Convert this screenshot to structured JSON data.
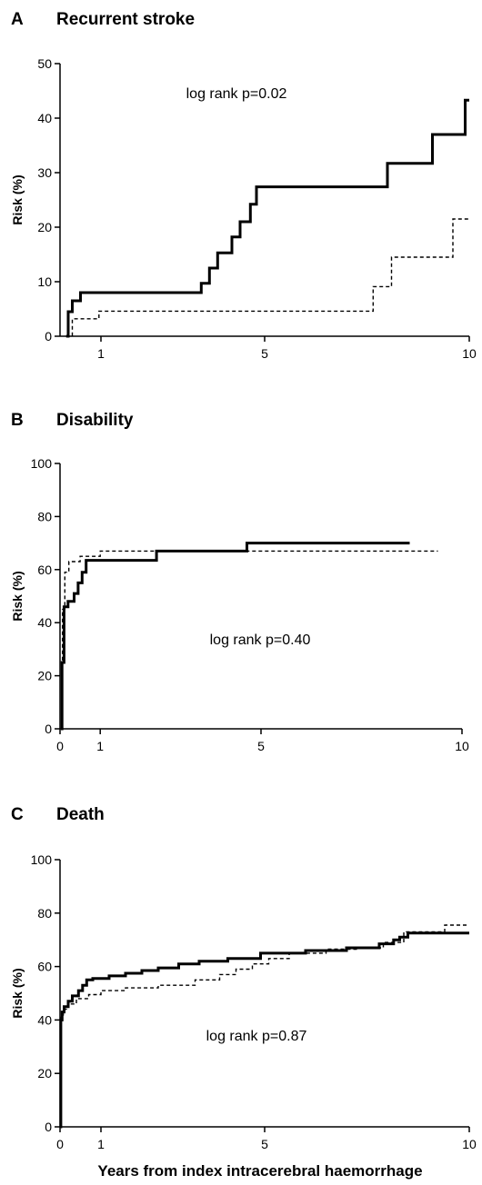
{
  "figure": {
    "xlabel": "Years from index intracerebral haemorrhage"
  },
  "chart_data": [
    {
      "type": "line",
      "panel_letter": "A",
      "title": "Recurrent stroke",
      "xlabel": "",
      "ylabel": "Risk  (%)",
      "annotation": "log rank p=0.02",
      "xlim": [
        0,
        10
      ],
      "ylim": [
        0,
        50
      ],
      "x_ticks": [
        1,
        5,
        10
      ],
      "y_ticks": [
        0,
        10,
        20,
        30,
        40,
        50
      ],
      "step": true,
      "series": [
        {
          "style": "solid",
          "x": [
            0.15,
            0.2,
            0.3,
            0.5,
            3.45,
            3.65,
            3.85,
            4.2,
            4.4,
            4.65,
            4.8,
            8.0,
            9.1,
            9.9,
            10.0
          ],
          "y": [
            0,
            4.5,
            6.5,
            8,
            9.7,
            12.5,
            15.3,
            18.2,
            21,
            24.2,
            27.4,
            31.7,
            37,
            43.3,
            43.3
          ]
        },
        {
          "style": "dashed",
          "x": [
            0.15,
            0.3,
            0.95,
            7.65,
            8.1,
            9.6,
            10.0
          ],
          "y": [
            0,
            3.2,
            4.6,
            9.1,
            14.5,
            21.5,
            21.5
          ]
        }
      ]
    },
    {
      "type": "line",
      "panel_letter": "B",
      "title": "Disability",
      "xlabel": "",
      "ylabel": "Risk  (%)",
      "annotation": "log rank p=0.40",
      "xlim": [
        0,
        10
      ],
      "ylim": [
        0,
        100
      ],
      "x_ticks": [
        0,
        1,
        5,
        10
      ],
      "y_ticks": [
        0,
        20,
        40,
        60,
        80,
        100
      ],
      "step": true,
      "series": [
        {
          "style": "solid",
          "x": [
            0.02,
            0.05,
            0.1,
            0.2,
            0.35,
            0.45,
            0.55,
            0.65,
            0.8,
            2.4,
            4.65,
            8.7
          ],
          "y": [
            0,
            25,
            46,
            48,
            51,
            55,
            59,
            63.5,
            63.5,
            67,
            70,
            70
          ]
        },
        {
          "style": "dashed",
          "x": [
            0.02,
            0.06,
            0.12,
            0.22,
            0.5,
            1.0,
            9.4
          ],
          "y": [
            0,
            45,
            59,
            63,
            65,
            67,
            67
          ]
        }
      ]
    },
    {
      "type": "line",
      "panel_letter": "C",
      "title": "Death",
      "xlabel": "",
      "ylabel": "Risk  (%)",
      "annotation": "log rank p=0.87",
      "xlim": [
        0,
        10
      ],
      "ylim": [
        0,
        100
      ],
      "x_ticks": [
        0,
        1,
        5,
        10
      ],
      "y_ticks": [
        0,
        20,
        40,
        60,
        80,
        100
      ],
      "step": true,
      "series": [
        {
          "style": "solid",
          "x": [
            0.0,
            0.02,
            0.05,
            0.1,
            0.2,
            0.3,
            0.45,
            0.55,
            0.65,
            0.8,
            1.2,
            1.6,
            2.0,
            2.4,
            2.9,
            3.4,
            4.1,
            4.9,
            6.0,
            7.0,
            7.8,
            8.15,
            8.3,
            8.5,
            10.0
          ],
          "y": [
            0,
            40,
            43,
            45,
            47,
            49,
            51,
            53,
            55,
            55.5,
            56.5,
            57.5,
            58.5,
            59.5,
            61,
            62,
            63,
            65,
            66,
            67,
            68.5,
            70,
            71,
            72.5,
            72.5
          ]
        },
        {
          "style": "dashed",
          "x": [
            0.0,
            0.03,
            0.08,
            0.2,
            0.4,
            0.7,
            1.0,
            1.6,
            2.4,
            3.3,
            3.9,
            4.3,
            4.7,
            5.1,
            5.6,
            6.5,
            7.3,
            7.9,
            8.4,
            9.4,
            10.0
          ],
          "y": [
            0,
            41,
            44,
            46,
            48,
            49.5,
            51,
            52,
            53,
            55,
            57,
            59,
            61,
            63,
            65,
            66.5,
            67,
            69,
            73,
            75.5,
            75.5
          ]
        }
      ]
    }
  ]
}
